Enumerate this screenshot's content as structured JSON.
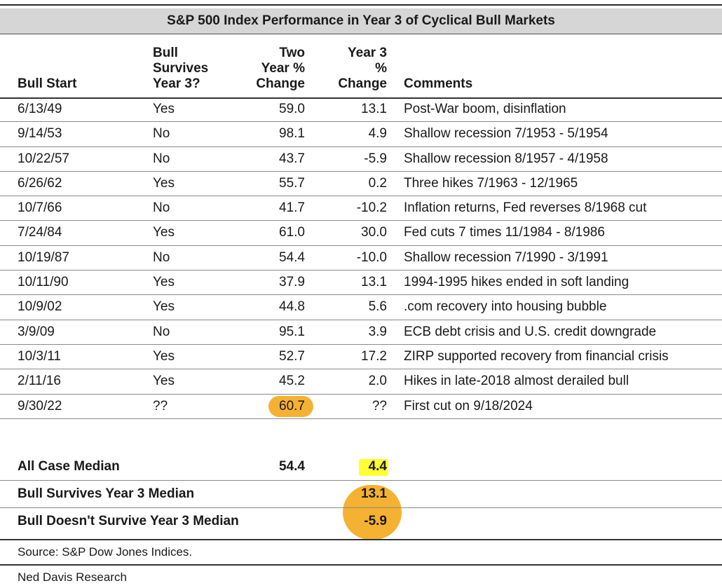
{
  "header_cut_text": "",
  "title": "S&P 500 Index Performance in Year 3 of Cyclical Bull Markets",
  "columns": {
    "bull_start": "Bull Start",
    "survives": "Bull\nSurvives\nYear 3?",
    "two_year": "Two\nYear %\nChange",
    "year3": "Year 3\n%\nChange",
    "comments": "Comments"
  },
  "rows": [
    {
      "start": "6/13/49",
      "survives": "Yes",
      "two_year": "59.0",
      "year3": "13.1",
      "comment": "Post-War boom, disinflation"
    },
    {
      "start": "9/14/53",
      "survives": "No",
      "two_year": "98.1",
      "year3": "4.9",
      "comment": "Shallow recession 7/1953 - 5/1954"
    },
    {
      "start": "10/22/57",
      "survives": "No",
      "two_year": "43.7",
      "year3": "-5.9",
      "comment": "Shallow recession 8/1957 - 4/1958"
    },
    {
      "start": "6/26/62",
      "survives": "Yes",
      "two_year": "55.7",
      "year3": "0.2",
      "comment": "Three hikes 7/1963 - 12/1965"
    },
    {
      "start": "10/7/66",
      "survives": "No",
      "two_year": "41.7",
      "year3": "-10.2",
      "comment": "Inflation returns, Fed reverses 8/1968 cut"
    },
    {
      "start": "7/24/84",
      "survives": "Yes",
      "two_year": "61.0",
      "year3": "30.0",
      "comment": "Fed cuts 7 times 11/1984 - 8/1986"
    },
    {
      "start": "10/19/87",
      "survives": "No",
      "two_year": "54.4",
      "year3": "-10.0",
      "comment": "Shallow recession 7/1990 - 3/1991"
    },
    {
      "start": "10/11/90",
      "survives": "Yes",
      "two_year": "37.9",
      "year3": "13.1",
      "comment": "1994-1995 hikes ended in soft landing"
    },
    {
      "start": "10/9/02",
      "survives": "Yes",
      "two_year": "44.8",
      "year3": "5.6",
      "comment": ".com recovery into housing bubble"
    },
    {
      "start": "3/9/09",
      "survives": "No",
      "two_year": "95.1",
      "year3": "3.9",
      "comment": "ECB debt crisis and U.S. credit downgrade"
    },
    {
      "start": "10/3/11",
      "survives": "Yes",
      "two_year": "52.7",
      "year3": "17.2",
      "comment": "ZIRP supported recovery from financial crisis"
    },
    {
      "start": "2/11/16",
      "survives": "Yes",
      "two_year": "45.2",
      "year3": "2.0",
      "comment": "Hikes in late-2018 almost derailed bull"
    },
    {
      "start": "9/30/22",
      "survives": "??",
      "two_year": "60.7",
      "year3": "??",
      "comment": "First cut on 9/18/2024"
    }
  ],
  "summary": [
    {
      "label": "All Case Median",
      "two_year": "54.4",
      "year3": "4.4"
    },
    {
      "label": "Bull Survives Year 3 Median",
      "two_year": "",
      "year3": "13.1"
    },
    {
      "label": "Bull Doesn't Survive Year 3 Median",
      "two_year": "",
      "year3": "-5.9"
    }
  ],
  "source": "Source: S&P Dow Jones Indices.",
  "footer": "Ned Davis Research",
  "colors": {
    "highlight_orange": "#f5b131",
    "highlight_yellow": "#ffff33",
    "title_bg": "#d6d6d6"
  }
}
